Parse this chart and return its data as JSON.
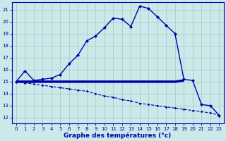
{
  "x": [
    0,
    1,
    2,
    3,
    4,
    5,
    6,
    7,
    8,
    9,
    10,
    11,
    12,
    13,
    14,
    15,
    16,
    17,
    18,
    19,
    20,
    21,
    22,
    23
  ],
  "temp": [
    15.0,
    15.9,
    15.1,
    15.2,
    15.3,
    15.6,
    16.5,
    17.2,
    18.4,
    18.8,
    19.5,
    20.3,
    20.2,
    19.6,
    21.3,
    21.1,
    20.4,
    19.7,
    19.0,
    15.2,
    15.1,
    13.1,
    13.0,
    12.2
  ],
  "dew": [
    15.0,
    14.9,
    14.8,
    14.7,
    14.6,
    14.5,
    14.4,
    14.3,
    14.2,
    14.0,
    13.8,
    13.7,
    13.5,
    13.4,
    13.2,
    13.1,
    13.0,
    12.9,
    12.8,
    12.7,
    12.6,
    12.5,
    12.4,
    12.2
  ],
  "flat": [
    15.0,
    15.0,
    15.0,
    15.0,
    15.0,
    15.0,
    15.0,
    15.0,
    15.0,
    15.0,
    15.0,
    15.0,
    15.0,
    15.0,
    15.0,
    15.0,
    15.0,
    15.0,
    15.0,
    15.1
  ],
  "flat_x": [
    0,
    1,
    2,
    3,
    4,
    5,
    6,
    7,
    8,
    9,
    10,
    11,
    12,
    13,
    14,
    15,
    16,
    17,
    18,
    19
  ],
  "bg_color": "#cce8e8",
  "grid_color": "#9fc8c8",
  "line_color": "#0000aa",
  "xlabel": "Graphe des températures (°c)",
  "ylim_min": 11.5,
  "ylim_max": 21.6,
  "xlim_min": -0.5,
  "xlim_max": 23.5,
  "yticks": [
    12,
    13,
    14,
    15,
    16,
    17,
    18,
    19,
    20,
    21
  ],
  "xticks": [
    0,
    1,
    2,
    3,
    4,
    5,
    6,
    7,
    8,
    9,
    10,
    11,
    12,
    13,
    14,
    15,
    16,
    17,
    18,
    19,
    20,
    21,
    22,
    23
  ]
}
